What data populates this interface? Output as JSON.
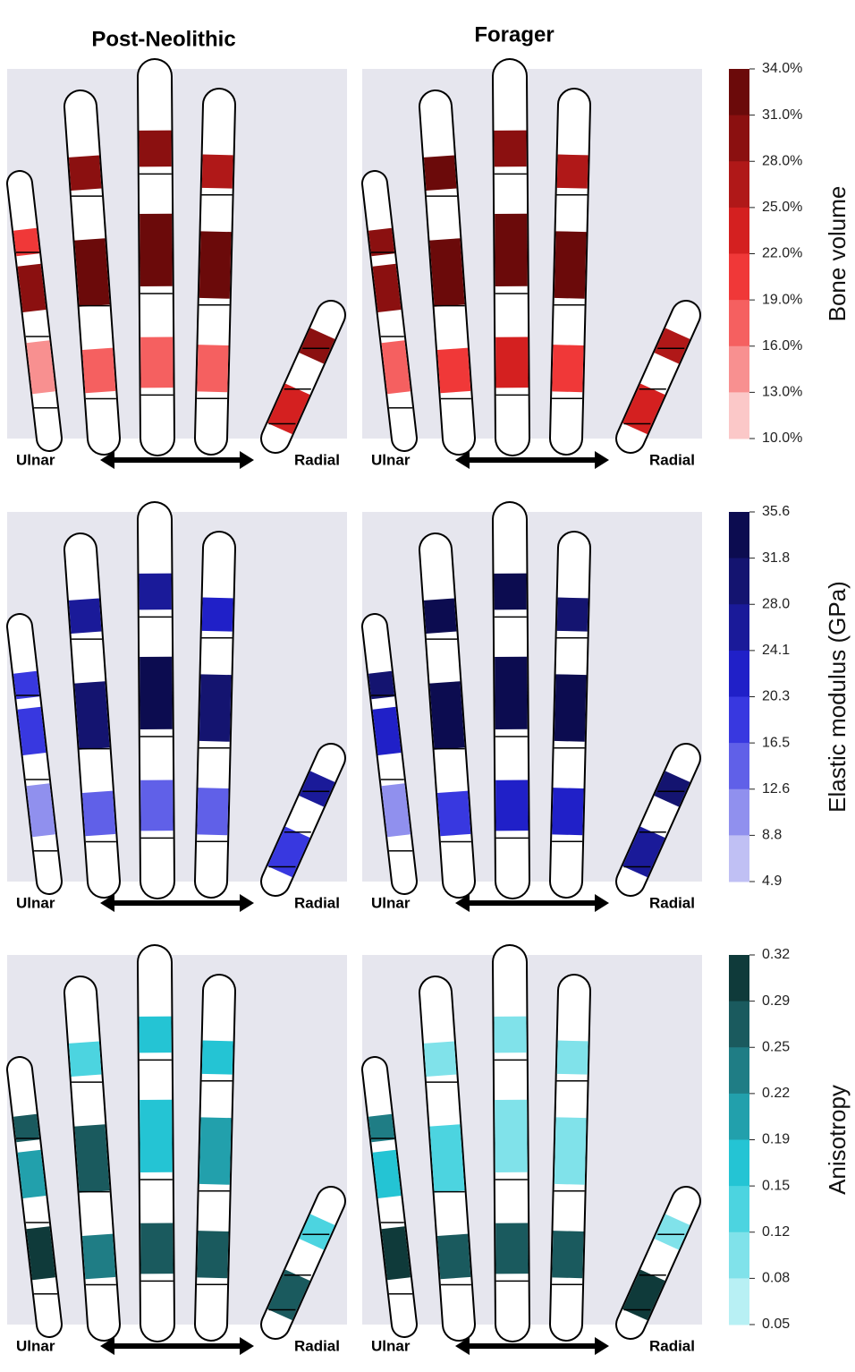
{
  "columns": [
    "Post-Neolithic",
    "Forager"
  ],
  "direction": {
    "left": "Ulnar",
    "right": "Radial"
  },
  "rows": [
    {
      "label": "Bone volume",
      "ticks": [
        "34.0%",
        "31.0%",
        "28.0%",
        "25.0%",
        "22.0%",
        "19.0%",
        "16.0%",
        "13.0%",
        "10.0%"
      ],
      "colors": [
        "#6b0a0a",
        "#8b1010",
        "#b01818",
        "#d42020",
        "#f03838",
        "#f56060",
        "#f89090",
        "#fbc8c8"
      ]
    },
    {
      "label": "Elastic modulus (GPa)",
      "ticks": [
        "35.6",
        "31.8",
        "28.0",
        "24.1",
        "20.3",
        "16.5",
        "12.6",
        "8.8",
        "4.9"
      ],
      "colors": [
        "#0c0c50",
        "#141470",
        "#1a1a99",
        "#2020c8",
        "#3838e0",
        "#6060e8",
        "#9090ee",
        "#c0c0f4"
      ]
    },
    {
      "label": "Anisotropy",
      "ticks": [
        "0.32",
        "0.29",
        "0.25",
        "0.22",
        "0.19",
        "0.15",
        "0.12",
        "0.08",
        "0.05"
      ],
      "colors": [
        "#0f3a3a",
        "#1a5a5e",
        "#1f7d85",
        "#22a0ac",
        "#24c4d4",
        "#4cd4e0",
        "#80e2ea",
        "#b8f0f4"
      ]
    }
  ]
}
